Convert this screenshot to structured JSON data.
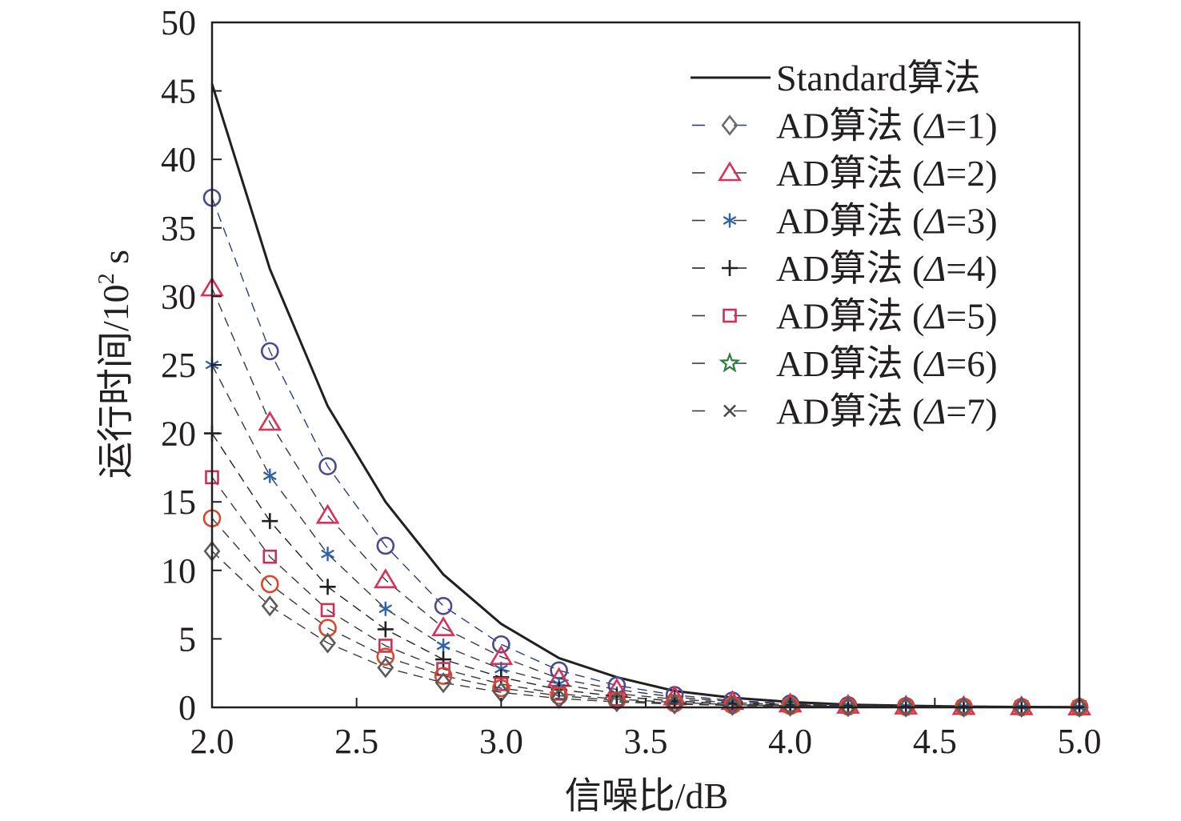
{
  "chart_data": {
    "type": "line",
    "title": "",
    "xlabel": "信噪比/dB",
    "ylabel": {
      "main": "运行时间/10",
      "sup": "2",
      "unit": " s"
    },
    "xlim": [
      2.0,
      5.0
    ],
    "ylim": [
      0,
      50
    ],
    "x_ticks": [
      "2.0",
      "2.5",
      "3.0",
      "3.5",
      "4.0",
      "4.5",
      "5.0"
    ],
    "y_ticks": [
      "0",
      "5",
      "10",
      "15",
      "20",
      "25",
      "30",
      "35",
      "40",
      "45",
      "50"
    ],
    "grid": false,
    "legend_position": "top-right",
    "x": [
      2.0,
      2.2,
      2.4,
      2.6,
      2.8,
      3.0,
      3.2,
      3.4,
      3.6,
      3.8,
      4.0,
      4.2,
      4.4,
      4.6,
      4.8,
      5.0
    ],
    "series": [
      {
        "name": "Standard算法",
        "legend": {
          "pre": "Standard算法",
          "delta": "",
          "post": ""
        },
        "line_style": "solid",
        "marker": "none",
        "color": "#231f20",
        "values": [
          45.5,
          32.0,
          22.0,
          15.0,
          9.7,
          6.1,
          3.6,
          2.2,
          1.2,
          0.7,
          0.4,
          0.2,
          0.12,
          0.06,
          0.03,
          0.02
        ]
      },
      {
        "name": "AD算法 (Δ=1)",
        "legend": {
          "pre": "AD算法 (",
          "delta": "Δ",
          "post": "=1)"
        },
        "line_style": "dashed",
        "marker": "circle",
        "marker_color": "#4a4a8f",
        "legend_marker": "diamond",
        "legend_marker_color": "#6b6b6b",
        "color": "#2b3a8f",
        "values": [
          37.2,
          26.0,
          17.6,
          11.8,
          7.4,
          4.6,
          2.7,
          1.6,
          0.9,
          0.5,
          0.28,
          0.16,
          0.09,
          0.05,
          0.03,
          0.02
        ]
      },
      {
        "name": "AD算法 (Δ=2)",
        "legend": {
          "pre": "AD算法 (",
          "delta": "Δ",
          "post": "=2)"
        },
        "line_style": "dashed",
        "marker": "triangle",
        "marker_color": "#d9315a",
        "color": "#3a3a3a",
        "values": [
          30.6,
          20.8,
          14.0,
          9.3,
          5.8,
          3.7,
          2.1,
          1.3,
          0.75,
          0.42,
          0.24,
          0.14,
          0.08,
          0.05,
          0.03,
          0.02
        ]
      },
      {
        "name": "AD算法 (Δ=3)",
        "legend": {
          "pre": "AD算法 (",
          "delta": "Δ",
          "post": "=3)"
        },
        "line_style": "dashed",
        "marker": "asterisk",
        "marker_color": "#2f63a8",
        "color": "#3a3a3a",
        "values": [
          25.0,
          16.9,
          11.2,
          7.2,
          4.5,
          2.8,
          1.7,
          1.0,
          0.6,
          0.34,
          0.2,
          0.11,
          0.07,
          0.04,
          0.02,
          0.01
        ]
      },
      {
        "name": "AD算法 (Δ=4)",
        "legend": {
          "pre": "AD算法 (",
          "delta": "Δ",
          "post": "=4)"
        },
        "line_style": "dashed",
        "marker": "plus",
        "marker_color": "#231f20",
        "color": "#231f20",
        "values": [
          20.0,
          13.6,
          8.8,
          5.7,
          3.5,
          2.2,
          1.3,
          0.8,
          0.46,
          0.27,
          0.15,
          0.09,
          0.05,
          0.03,
          0.02,
          0.01
        ]
      },
      {
        "name": "AD算法 (Δ=5)",
        "legend": {
          "pre": "AD算法 (",
          "delta": "Δ",
          "post": "=5)"
        },
        "line_style": "dashed",
        "marker": "square",
        "marker_color": "#c8325a",
        "color": "#3a3a3a",
        "values": [
          16.8,
          11.0,
          7.1,
          4.5,
          2.8,
          1.7,
          1.0,
          0.6,
          0.36,
          0.2,
          0.12,
          0.07,
          0.04,
          0.02,
          0.01,
          0.01
        ]
      },
      {
        "name": "AD算法 (Δ=6)",
        "legend": {
          "pre": "AD算法 (",
          "delta": "Δ",
          "post": "=6)"
        },
        "line_style": "dashed",
        "marker": "circle",
        "marker_color": "#d9482c",
        "legend_marker": "star",
        "legend_marker_color": "#2a7d3c",
        "color": "#3a3a3a",
        "values": [
          13.8,
          9.0,
          5.8,
          3.7,
          2.3,
          1.4,
          0.85,
          0.5,
          0.3,
          0.17,
          0.1,
          0.06,
          0.03,
          0.02,
          0.01,
          0.01
        ]
      },
      {
        "name": "AD算法 (Δ=7)",
        "legend": {
          "pre": "AD算法 (",
          "delta": "Δ",
          "post": "=7)"
        },
        "line_style": "dashed",
        "marker": "diamond",
        "marker_color": "#5a5a5a",
        "legend_marker": "x",
        "legend_marker_color": "#4a4a4a",
        "color": "#3a3a3a",
        "values": [
          11.4,
          7.4,
          4.7,
          2.9,
          1.8,
          1.1,
          0.65,
          0.4,
          0.24,
          0.14,
          0.08,
          0.05,
          0.03,
          0.02,
          0.01,
          0.01
        ]
      }
    ]
  }
}
